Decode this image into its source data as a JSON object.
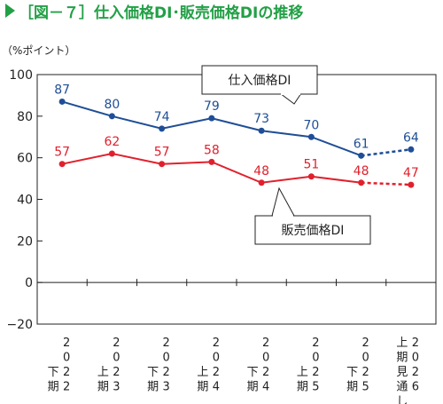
{
  "chart_data": {
    "type": "line",
    "title": "［図－７］仕入価格DI･販売価格DIの推移",
    "ylabel": "（%ポイント）",
    "ylim": [
      -20,
      100
    ],
    "yticks": [
      100,
      80,
      60,
      40,
      20,
      0,
      -20
    ],
    "categories": [
      [
        "2022",
        "下期"
      ],
      [
        "2023",
        "上期"
      ],
      [
        "2023",
        "下期"
      ],
      [
        "2024",
        "上期"
      ],
      [
        "2024",
        "下期"
      ],
      [
        "2025",
        "上期"
      ],
      [
        "2025",
        "下期"
      ],
      [
        "2026",
        "上期見通し"
      ]
    ],
    "series": [
      {
        "name": "仕入価格DI",
        "color": "#1f4e96",
        "values": [
          87,
          80,
          74,
          79,
          73,
          70,
          61,
          64
        ],
        "dashed_last_segment": true
      },
      {
        "name": "販売価格DI",
        "color": "#e0212d",
        "values": [
          57,
          62,
          57,
          58,
          48,
          51,
          48,
          47
        ],
        "dashed_last_segment": true
      }
    ],
    "legend": "callout boxes",
    "grid": false
  }
}
